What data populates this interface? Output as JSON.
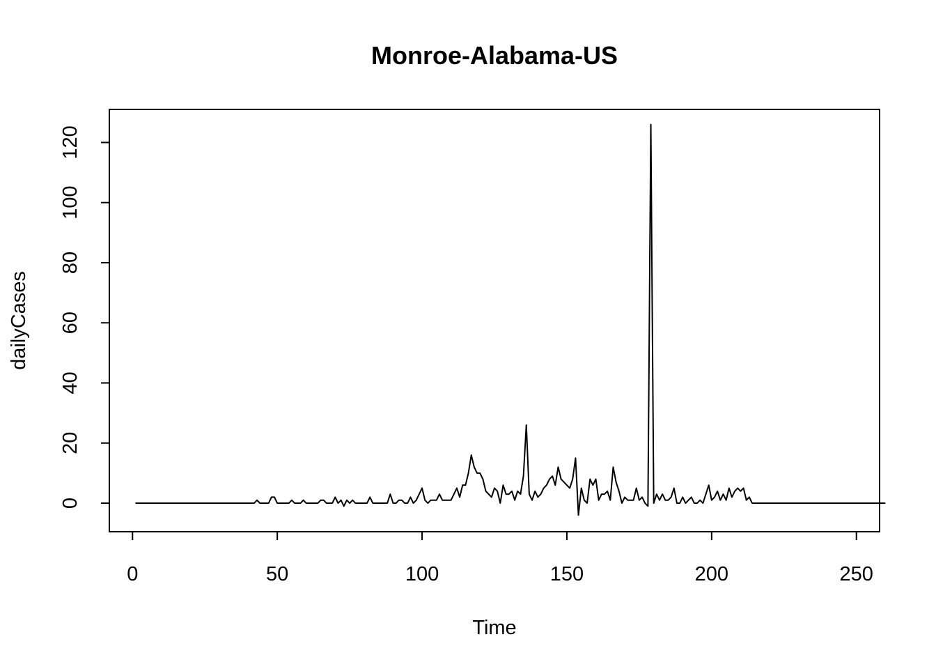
{
  "chart_data": {
    "type": "line",
    "title": "Monroe-Alabama-US",
    "xlabel": "Time",
    "ylabel": "dailyCases",
    "xlim": [
      -8,
      258
    ],
    "ylim": [
      -9.5,
      131
    ],
    "xticks": [
      0,
      50,
      100,
      150,
      200,
      250
    ],
    "yticks": [
      0,
      20,
      40,
      60,
      80,
      100,
      120
    ],
    "grid": false,
    "legend": "none",
    "series": [
      {
        "x_start": 1,
        "values": [
          0,
          0,
          0,
          0,
          0,
          0,
          0,
          0,
          0,
          0,
          0,
          0,
          0,
          0,
          0,
          0,
          0,
          0,
          0,
          0,
          0,
          0,
          0,
          0,
          0,
          0,
          0,
          0,
          0,
          0,
          0,
          0,
          0,
          0,
          0,
          0,
          0,
          0,
          0,
          0,
          0,
          0,
          1,
          0,
          0,
          0,
          0,
          2,
          2,
          0,
          0,
          0,
          0,
          0,
          1,
          0,
          0,
          0,
          1,
          0,
          0,
          0,
          0,
          0,
          1,
          1,
          0,
          0,
          0,
          2,
          0,
          1,
          -1,
          1,
          0,
          1,
          0,
          0,
          0,
          0,
          0,
          2,
          0,
          0,
          0,
          0,
          0,
          0,
          3,
          0,
          0,
          1,
          1,
          0,
          0,
          2,
          0,
          1,
          3,
          5,
          1,
          0,
          1,
          1,
          1,
          3,
          1,
          1,
          1,
          1,
          3,
          5,
          2,
          6,
          6,
          10,
          16,
          12,
          10,
          10,
          8,
          4,
          3,
          2,
          5,
          4,
          0,
          6,
          3,
          3,
          4,
          1,
          4,
          3,
          9,
          26,
          3,
          1,
          4,
          2,
          3,
          5,
          6,
          8,
          9,
          6,
          12,
          8,
          7,
          6,
          5,
          8,
          15,
          -4,
          5,
          1,
          0,
          8,
          6,
          8,
          1,
          3,
          3,
          4,
          1,
          12,
          7,
          4,
          0,
          2,
          1,
          1,
          1,
          5,
          1,
          2,
          0,
          -1,
          126,
          0,
          3,
          1,
          3,
          1,
          1,
          2,
          5,
          0,
          0,
          2,
          0,
          1,
          2,
          0,
          0,
          1,
          0,
          3,
          6,
          1,
          2,
          4,
          1,
          3,
          1,
          5,
          2,
          4,
          5,
          4,
          5,
          1,
          2,
          0,
          0,
          0,
          0,
          0,
          0,
          0,
          0,
          0,
          0,
          0,
          0,
          0,
          0,
          0,
          0,
          0,
          0,
          0,
          0,
          0,
          0,
          0,
          0,
          0,
          0,
          0,
          0,
          0,
          0,
          0,
          0,
          0,
          0,
          0,
          0,
          0,
          0,
          0,
          0,
          0,
          0,
          0,
          0,
          0,
          0,
          0
        ]
      }
    ]
  }
}
